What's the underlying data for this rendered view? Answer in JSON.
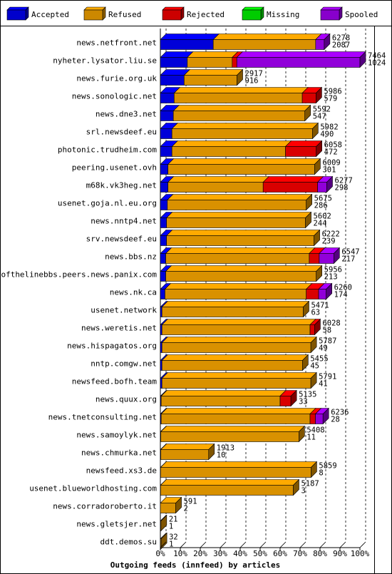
{
  "chart_data": {
    "type": "bar",
    "title": "",
    "xlabel": "Outgoing feeds (innfeed) by articles",
    "ylabel": "",
    "xlim": [
      0,
      100
    ],
    "x_unit": "%",
    "x_ticks": [
      "0%",
      "10%",
      "20%",
      "30%",
      "40%",
      "50%",
      "60%",
      "70%",
      "80%",
      "90%",
      "100%"
    ],
    "legend_position": "top",
    "series": [
      {
        "name": "Accepted",
        "color": "#0000ff"
      },
      {
        "name": "Refused",
        "color": "#ffaa00"
      },
      {
        "name": "Rejected",
        "color": "#ff0000"
      },
      {
        "name": "Missing",
        "color": "#00ff00"
      },
      {
        "name": "Spooled",
        "color": "#aa00ff"
      }
    ],
    "rows": [
      {
        "name": "news.netfront.net",
        "total": "6278",
        "second": "2087",
        "accepted": 26.5,
        "refused": 51.3,
        "rejected": 0,
        "missing": 0,
        "spooled": 4.3
      },
      {
        "name": "nyheter.lysator.liu.se",
        "total": "7464",
        "second": "1024",
        "accepted": 13.5,
        "refused": 22.5,
        "rejected": 2.3,
        "missing": 0,
        "spooled": 61.7
      },
      {
        "name": "news.furie.org.uk",
        "total": "2917",
        "second": "916",
        "accepted": 11.9,
        "refused": 26.5,
        "rejected": 0,
        "missing": 0,
        "spooled": 0
      },
      {
        "name": "news.sonologic.net",
        "total": "5986",
        "second": "579",
        "accepted": 6.9,
        "refused": 64.2,
        "rejected": 6.9,
        "missing": 0,
        "spooled": 0
      },
      {
        "name": "news.dne3.net",
        "total": "5592",
        "second": "547",
        "accepted": 6.5,
        "refused": 65.9,
        "rejected": 0,
        "missing": 0,
        "spooled": 0
      },
      {
        "name": "srl.newsdeef.eu",
        "total": "5982",
        "second": "490",
        "accepted": 5.8,
        "refused": 70.4,
        "rejected": 0,
        "missing": 0,
        "spooled": 0
      },
      {
        "name": "photonic.trudheim.com",
        "total": "6058",
        "second": "472",
        "accepted": 5.8,
        "refused": 56.9,
        "rejected": 15.4,
        "missing": 0,
        "spooled": 0
      },
      {
        "name": "peering.usenet.ovh",
        "total": "6009",
        "second": "301",
        "accepted": 3.8,
        "refused": 73.5,
        "rejected": 0,
        "missing": 0,
        "spooled": 0
      },
      {
        "name": "m68k.vk3heg.net",
        "total": "6277",
        "second": "298",
        "accepted": 3.8,
        "refused": 47.7,
        "rejected": 27.3,
        "missing": 0,
        "spooled": 4.6
      },
      {
        "name": "usenet.goja.nl.eu.org",
        "total": "5675",
        "second": "286",
        "accepted": 3.5,
        "refused": 69.6,
        "rejected": 0,
        "missing": 0,
        "spooled": 0
      },
      {
        "name": "news.nntp4.net",
        "total": "5602",
        "second": "244",
        "accepted": 3.1,
        "refused": 69.6,
        "rejected": 0,
        "missing": 0,
        "spooled": 0
      },
      {
        "name": "srv.newsdeef.eu",
        "total": "6222",
        "second": "239",
        "accepted": 3.1,
        "refused": 73.9,
        "rejected": 0,
        "missing": 0,
        "spooled": 0
      },
      {
        "name": "news.bbs.nz",
        "total": "6547",
        "second": "217",
        "accepted": 2.7,
        "refused": 71.9,
        "rejected": 5.0,
        "missing": 0,
        "spooled": 7.3
      },
      {
        "name": "endofthelinebbs.peers.news.panix.com",
        "total": "5956",
        "second": "213",
        "accepted": 2.7,
        "refused": 75.4,
        "rejected": 0,
        "missing": 0,
        "spooled": 0
      },
      {
        "name": "news.nk.ca",
        "total": "6260",
        "second": "174",
        "accepted": 2.3,
        "refused": 70.8,
        "rejected": 6.2,
        "missing": 0,
        "spooled": 3.8
      },
      {
        "name": "usenet.network",
        "total": "5471",
        "second": "63",
        "accepted": 0.8,
        "refused": 70.8,
        "rejected": 0,
        "missing": 0,
        "spooled": 0
      },
      {
        "name": "news.weretis.net",
        "total": "6028",
        "second": "58",
        "accepted": 0.8,
        "refused": 74.2,
        "rejected": 2.3,
        "missing": 0,
        "spooled": 0
      },
      {
        "name": "news.hispagatos.org",
        "total": "5787",
        "second": "49",
        "accepted": 0.8,
        "refused": 74.6,
        "rejected": 0,
        "missing": 0,
        "spooled": 0
      },
      {
        "name": "nntp.comgw.net",
        "total": "5455",
        "second": "45",
        "accepted": 0.8,
        "refused": 70.4,
        "rejected": 0,
        "missing": 0,
        "spooled": 0
      },
      {
        "name": "newsfeed.bofh.team",
        "total": "5791",
        "second": "41",
        "accepted": 0.8,
        "refused": 74.6,
        "rejected": 0,
        "missing": 0,
        "spooled": 0
      },
      {
        "name": "news.quux.org",
        "total": "5135",
        "second": "33",
        "accepted": 0.4,
        "refused": 59.6,
        "rejected": 5.4,
        "missing": 0,
        "spooled": 0
      },
      {
        "name": "news.tnetconsulting.net",
        "total": "6236",
        "second": "28",
        "accepted": 0.4,
        "refused": 74.6,
        "rejected": 2.7,
        "missing": 0,
        "spooled": 3.8
      },
      {
        "name": "news.samoylyk.net",
        "total": "5408",
        "second": "11",
        "accepted": 0.2,
        "refused": 69.2,
        "rejected": 0,
        "missing": 0,
        "spooled": 0
      },
      {
        "name": "news.chmurka.net",
        "total": "1913",
        "second": "10",
        "accepted": 0.2,
        "refused": 24.0,
        "rejected": 0,
        "missing": 0,
        "spooled": 0
      },
      {
        "name": "newsfeed.xs3.de",
        "total": "5859",
        "second": "8",
        "accepted": 0.1,
        "refused": 75.4,
        "rejected": 0,
        "missing": 0,
        "spooled": 0
      },
      {
        "name": "usenet.blueworldhosting.com",
        "total": "5187",
        "second": "3",
        "accepted": 0.1,
        "refused": 66.5,
        "rejected": 0,
        "missing": 0,
        "spooled": 0
      },
      {
        "name": "news.corradoroberto.it",
        "total": "591",
        "second": "2",
        "accepted": 0,
        "refused": 7.7,
        "rejected": 0,
        "missing": 0,
        "spooled": 0
      },
      {
        "name": "news.gletsjer.net",
        "total": "21",
        "second": "1",
        "accepted": 0,
        "refused": 0.3,
        "rejected": 0,
        "missing": 0,
        "spooled": 0
      },
      {
        "name": "ddt.demos.su",
        "total": "32",
        "second": "1",
        "accepted": 0,
        "refused": 0.4,
        "rejected": 0,
        "missing": 0,
        "spooled": 0
      }
    ]
  }
}
